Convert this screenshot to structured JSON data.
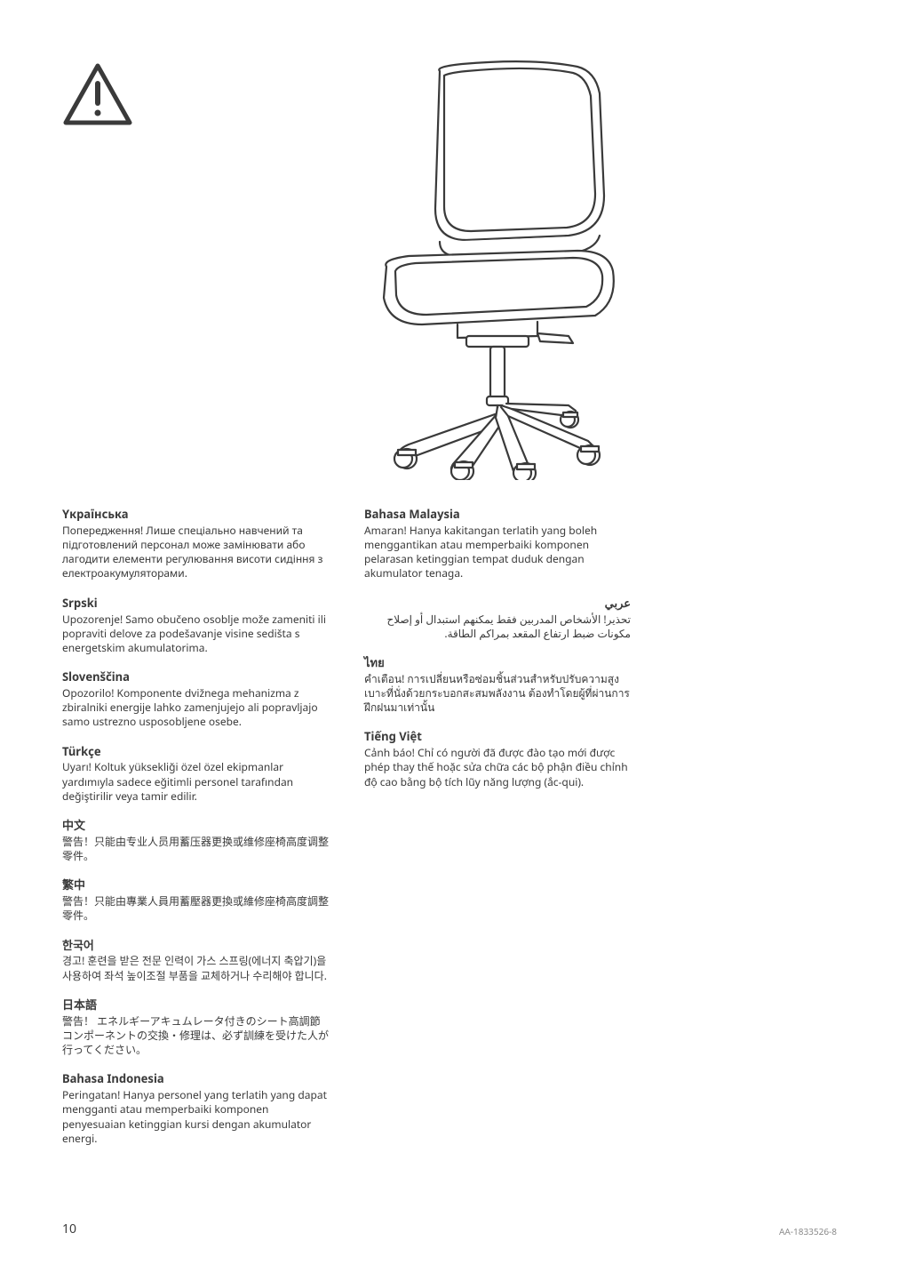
{
  "page_number": "10",
  "doc_id": "AA-1833526-8",
  "warnings": [
    {
      "lang_title": "Yкраїнська",
      "body": "Попередження! Лише спеціально навчений та підготовлений персонал може замінювати або лагодити елементи регулювання висоти сидіння з електроакумуляторами."
    },
    {
      "lang_title": "Srpski",
      "body": "Upozorenje! Samo obučeno osoblje može zameniti ili popraviti delove za podešavanje visine sedišta s energetskim akumulatorima."
    },
    {
      "lang_title": "Slovenščina",
      "body": "Opozorilo! Komponente dvižnega mehanizma z zbiralniki energije lahko zamenjujejo ali popravljajo samo ustrezno usposobljene osebe."
    },
    {
      "lang_title": "Türkçe",
      "body": "Uyarı! Koltuk yüksekliği özel özel ekipmanlar yardımıyla sadece eğitimli personel tarafından değiştirilir veya tamir edilir."
    },
    {
      "lang_title": "中文",
      "body": "警告！只能由专业人员用蓄压器更换或维修座椅高度调整零件。"
    },
    {
      "lang_title": "繁中",
      "body": "警告！只能由專業人員用蓄壓器更換或維修座椅高度調整零件。"
    },
    {
      "lang_title": "한국어",
      "body": "경고! 훈련을 받은 전문 인력이 가스 스프링(에너지 축압기)을 사용하여 좌석 높이조절 부품을 교체하거나 수리해야 합니다."
    },
    {
      "lang_title": "日本語",
      "body": "警告！ エネルギーアキュムレータ付きのシート高調節コンポーネントの交換・修理は、必ず訓練を受けた人が行ってください。"
    },
    {
      "lang_title": "Bahasa Indonesia",
      "body": "Peringatan! Hanya personel yang terlatih yang dapat mengganti atau memperbaiki komponen penyesuaian ketinggian kursi dengan akumulator energi."
    },
    {
      "lang_title": "Bahasa Malaysia",
      "body": "Amaran! Hanya kakitangan terlatih yang boleh menggantikan atau memperbaiki komponen pelarasan ketinggian tempat duduk dengan akumulator tenaga."
    },
    {
      "lang_title": "عربي",
      "body": "تحذير! الأشخاص المدربين فقط يمكنهم استبدال أو إصلاح مكونات ضبط ارتفاع المقعد بمراكم الطاقة.",
      "rtl": true
    },
    {
      "lang_title": "ไทย",
      "body": "คำเตือน! การเปลี่ยนหรือซ่อมชิ้นส่วนสำหรับปรับความสูงเบาะที่นั่งด้วยกระบอกสะสมพลังงาน ต้องทำโดยผู้ที่ผ่านการฝึกฝนมาเท่านั้น"
    },
    {
      "lang_title": "Tiếng Việt",
      "body": "Cảnh báo! Chỉ có người đã được đào tạo mới được phép thay thế hoặc sửa chữa các bộ phận điều chỉnh độ cao bằng bộ tích lũy năng lượng (ắc-qui)."
    }
  ],
  "column_split": 9,
  "icon": {
    "stroke": "#3a3a3a",
    "stroke_width": 3
  },
  "chair": {
    "stroke": "#3a3a3a",
    "stroke_width": 2,
    "fill": "#ffffff"
  }
}
